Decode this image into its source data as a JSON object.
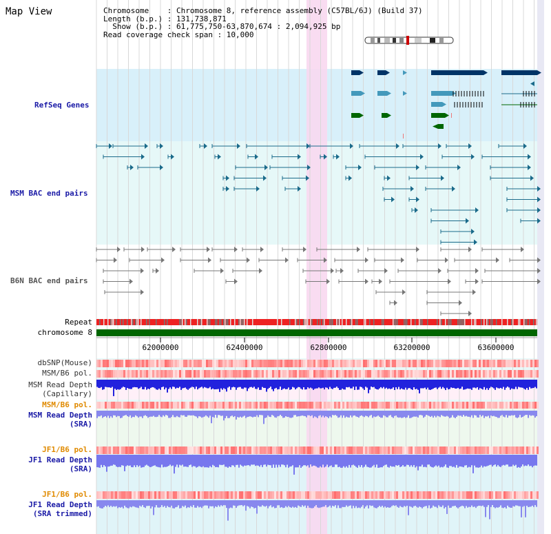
{
  "title": "Map View",
  "info": {
    "chromosome": "Chromosome    : Chromosome 8, reference assembly (C57BL/6J) (Build 37)",
    "length": "Length (b.p.) : 131,738,871",
    "show": "  Show (b.p.) : 61,775,750-63,870,674 : 2,094,925 bp",
    "coverage": "Read coverage check span : 10,000"
  },
  "tracks": {
    "refseq": "RefSeq Genes",
    "msm_bac": "MSM BAC end pairs",
    "b6n_bac": "B6N BAC end pairs",
    "repeat": "Repeat",
    "chromosome": "chromosome 8",
    "dbsnp": "dbSNP(Mouse)",
    "msm_b6_pol_1": "MSM/B6 pol.",
    "msm_read_depth_cap_1": "MSM Read Depth",
    "msm_read_depth_cap_2": "(Capillary)",
    "msm_b6_pol_2": "MSM/B6 pol.",
    "msm_read_depth_sra_1": "MSM Read Depth",
    "msm_read_depth_sra_2": "(SRA)",
    "jf1_b6_pol_1": "JF1/B6 pol.",
    "jf1_read_depth_sra_1": "JF1 Read Depth",
    "jf1_read_depth_sra_2": "(SRA)",
    "jf1_b6_pol_2": "JF1/B6 pol.",
    "jf1_read_depth_trim_1": "JF1 Read Depth",
    "jf1_read_depth_trim_2": "(SRA trimmed)"
  },
  "axis_ticks": [
    "62000000",
    "62400000",
    "62800000",
    "63200000",
    "63600000"
  ],
  "colors": {
    "refseq_bg": "#d8f0fa",
    "bac_bg": "#e0f8f8",
    "highlight": "#f8d8f0",
    "gene_dark": "#003366",
    "gene_mid": "#4499bb",
    "gene_green": "#006600",
    "bac_teal": "#1a6a8a",
    "bac_gray": "#777777",
    "repeat_red": "#ee1111",
    "chrom_green": "#006600",
    "depth_blue": "#2222dd",
    "depth_light_blue": "#8888ee"
  }
}
